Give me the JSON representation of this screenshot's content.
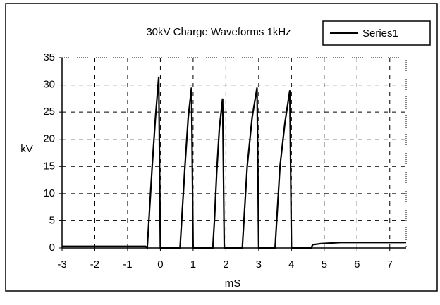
{
  "chart_data": {
    "type": "line",
    "title": "30kV Charge Waveforms 1kHz",
    "x_label": "mS",
    "y_label": "kV",
    "x": [
      -3,
      -0.45,
      -0.4,
      -0.35,
      -0.25,
      -0.15,
      -0.05,
      0,
      0.6,
      0.65,
      0.75,
      0.85,
      0.95,
      1.0,
      1.6,
      1.65,
      1.72,
      1.8,
      1.9,
      1.95,
      2.5,
      2.55,
      2.65,
      2.8,
      2.95,
      3.0,
      3.5,
      3.55,
      3.65,
      3.8,
      3.95,
      4.0,
      4.6,
      4.65,
      4.9,
      5.5,
      7.5
    ],
    "series": [
      {
        "name": "Series1",
        "color": "#000000",
        "values": [
          0.3,
          0.3,
          0,
          5,
          15,
          24,
          31.5,
          0,
          0,
          5,
          15,
          24,
          29.5,
          0,
          0,
          5,
          14,
          22,
          27.5,
          0,
          0,
          5,
          15,
          24,
          29.5,
          0,
          0,
          5,
          15,
          23,
          29,
          0,
          0,
          0.6,
          0.8,
          1,
          1
        ]
      }
    ],
    "xlim": [
      -3,
      7.5
    ],
    "xticks": [
      -3,
      -2,
      -1,
      0,
      1,
      2,
      3,
      4,
      5,
      6,
      7
    ],
    "ylim": [
      0,
      35
    ],
    "yticks": [
      0,
      5,
      10,
      15,
      20,
      25,
      30,
      35
    ],
    "grid": true,
    "legend": "top-right"
  }
}
